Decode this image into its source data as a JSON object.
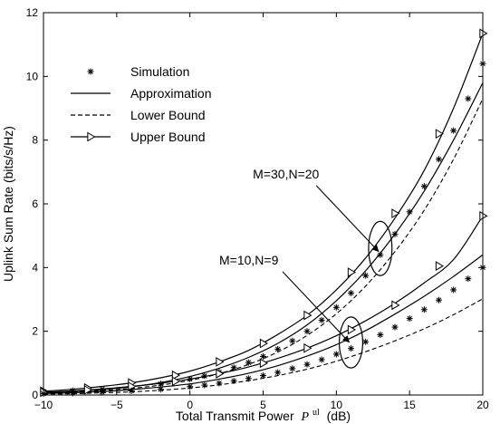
{
  "chart_data": {
    "type": "line",
    "title": "",
    "xlabel": "Total Transmit Power",
    "xlabel_symbol": "P",
    "xlabel_superscript": "ul",
    "xlabel_unit": "(dB)",
    "ylabel": "Uplink Sum Rate (bits/s/Hz)",
    "xlim": [
      -10,
      20
    ],
    "ylim": [
      0,
      12
    ],
    "xticks": [
      "-10",
      "-5",
      "0",
      "5",
      "10",
      "15",
      "20"
    ],
    "yticks": [
      "0",
      "2",
      "4",
      "6",
      "8",
      "10",
      "12"
    ],
    "grid": false,
    "legend_position": "top-left",
    "legend": [
      {
        "label": "Simulation",
        "style": "asterisk"
      },
      {
        "label": "Approximation",
        "style": "solid"
      },
      {
        "label": "Lower Bound",
        "style": "dashed"
      },
      {
        "label": "Upper Bound",
        "style": "solid-triangle"
      }
    ],
    "annotations": [
      {
        "text": "M=30,N=20",
        "text_at": [
          4.3,
          6.8
        ],
        "arrow_to": [
          13,
          4.45
        ],
        "ellipse_center": [
          13,
          4.6
        ],
        "ellipse_rx": 0.8,
        "ellipse_ry": 0.85
      },
      {
        "text": "M=10,N=9",
        "text_at": [
          2.0,
          4.1
        ],
        "arrow_to": [
          11,
          1.6
        ],
        "ellipse_center": [
          11,
          1.65
        ],
        "ellipse_rx": 0.8,
        "ellipse_ry": 0.8
      }
    ],
    "groups": [
      {
        "name": "M=30,N=20",
        "simulation": {
          "x": [
            -10,
            -8,
            -6,
            -4,
            -2,
            0,
            1,
            2,
            3,
            4,
            5,
            6,
            7,
            8,
            9,
            10,
            11,
            12,
            13,
            14,
            15,
            16,
            17,
            18,
            19,
            20
          ],
          "y": [
            0.1,
            0.14,
            0.18,
            0.25,
            0.35,
            0.5,
            0.6,
            0.72,
            0.86,
            1.02,
            1.21,
            1.44,
            1.7,
            2.0,
            2.35,
            2.75,
            3.2,
            3.75,
            4.4,
            5.05,
            5.75,
            6.55,
            7.4,
            8.3,
            9.3,
            10.4
          ]
        },
        "approximation": {
          "x": [
            -10,
            -8,
            -6,
            -4,
            -2,
            0,
            2,
            4,
            6,
            8,
            10,
            12,
            14,
            16,
            18,
            20
          ],
          "y": [
            0.07,
            0.11,
            0.17,
            0.26,
            0.39,
            0.58,
            0.84,
            1.18,
            1.62,
            2.2,
            2.96,
            3.9,
            5.05,
            6.4,
            8.0,
            9.8
          ]
        },
        "lower_bound": {
          "x": [
            -10,
            -8,
            -6,
            -4,
            -2,
            0,
            2,
            4,
            6,
            8,
            10,
            12,
            14,
            16,
            18,
            20
          ],
          "y": [
            0.06,
            0.09,
            0.14,
            0.21,
            0.31,
            0.46,
            0.67,
            0.96,
            1.35,
            1.87,
            2.55,
            3.42,
            4.5,
            5.8,
            7.4,
            9.3
          ]
        },
        "upper_bound": {
          "x": [
            -10,
            -8,
            -6,
            -4,
            -2,
            0,
            2,
            4,
            6,
            8,
            10,
            12,
            14,
            16,
            18,
            20
          ],
          "y": [
            0.12,
            0.18,
            0.27,
            0.38,
            0.54,
            0.75,
            1.04,
            1.4,
            1.9,
            2.5,
            3.3,
            4.3,
            5.55,
            7.05,
            9.0,
            11.35
          ]
        },
        "upper_bound_markers": {
          "x": [
            -10,
            -7,
            -4,
            -1,
            2,
            5,
            8,
            11,
            14,
            17,
            20
          ],
          "y": [
            0.12,
            0.22,
            0.38,
            0.62,
            1.04,
            1.62,
            2.5,
            3.85,
            5.7,
            8.2,
            11.35
          ]
        }
      },
      {
        "name": "M=10,N=9",
        "simulation": {
          "x": [
            -10,
            -8,
            -6,
            -4,
            -2,
            0,
            1,
            2,
            3,
            4,
            5,
            6,
            7,
            8,
            9,
            10,
            11,
            12,
            13,
            14,
            15,
            16,
            17,
            18,
            19,
            20
          ],
          "y": [
            0.04,
            0.06,
            0.09,
            0.13,
            0.18,
            0.26,
            0.31,
            0.37,
            0.44,
            0.52,
            0.61,
            0.71,
            0.83,
            0.96,
            1.11,
            1.28,
            1.46,
            1.67,
            1.89,
            2.13,
            2.4,
            2.68,
            2.98,
            3.3,
            3.65,
            4.0
          ]
        },
        "approximation": {
          "x": [
            -10,
            -8,
            -6,
            -4,
            -2,
            0,
            2,
            4,
            6,
            8,
            10,
            12,
            14,
            16,
            18,
            20
          ],
          "y": [
            0.05,
            0.07,
            0.11,
            0.17,
            0.25,
            0.35,
            0.5,
            0.68,
            0.92,
            1.22,
            1.58,
            2.02,
            2.54,
            3.1,
            3.72,
            4.4
          ]
        },
        "lower_bound": {
          "x": [
            -10,
            -8,
            -6,
            -4,
            -2,
            0,
            2,
            4,
            6,
            8,
            10,
            12,
            14,
            16,
            18,
            20
          ],
          "y": [
            0.03,
            0.04,
            0.07,
            0.1,
            0.15,
            0.22,
            0.32,
            0.45,
            0.61,
            0.81,
            1.06,
            1.36,
            1.7,
            2.08,
            2.52,
            3.02
          ]
        },
        "upper_bound": {
          "x": [
            -10,
            -8,
            -6,
            -4,
            -2,
            0,
            2,
            4,
            6,
            8,
            10,
            12,
            14,
            16,
            18,
            20
          ],
          "y": [
            0.09,
            0.13,
            0.19,
            0.27,
            0.37,
            0.5,
            0.67,
            0.88,
            1.15,
            1.47,
            1.86,
            2.33,
            2.88,
            3.52,
            4.25,
            5.62
          ]
        },
        "upper_bound_markers": {
          "x": [
            -10,
            -7,
            -4,
            -1,
            2,
            5,
            8,
            11,
            14,
            17,
            20
          ],
          "y": [
            0.09,
            0.16,
            0.27,
            0.43,
            0.67,
            1.0,
            1.47,
            2.05,
            2.82,
            4.05,
            5.62
          ]
        }
      }
    ]
  }
}
